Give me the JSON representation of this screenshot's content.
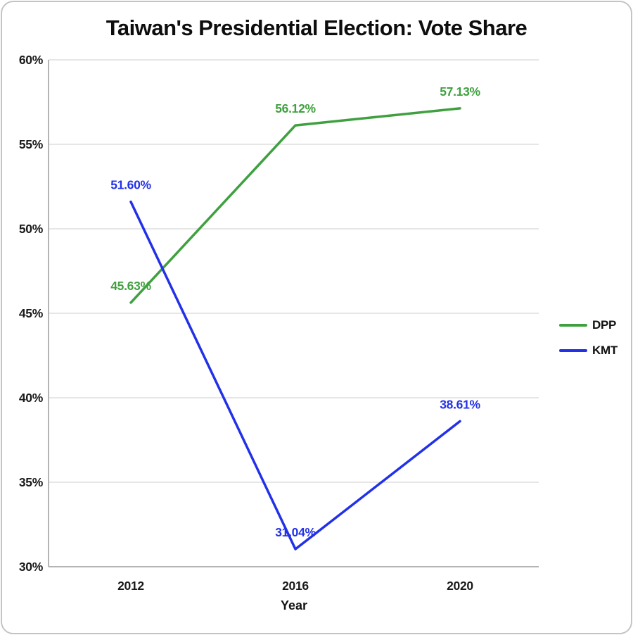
{
  "figure": {
    "background": "#ffffff",
    "border_color": "#c4c4c4"
  },
  "chart_data": {
    "type": "line",
    "title": "Taiwan's Presidential Election: Vote Share",
    "xlabel": "Year",
    "ylabel": "",
    "categories": [
      "2012",
      "2016",
      "2020"
    ],
    "series": [
      {
        "name": "DPP",
        "color": "#3fa03f",
        "values": [
          45.63,
          56.12,
          57.13
        ],
        "point_labels": [
          "45.63%",
          "56.12%",
          "57.13%"
        ]
      },
      {
        "name": "KMT",
        "color": "#2231e8",
        "values": [
          51.6,
          31.04,
          38.61
        ],
        "point_labels": [
          "51.60%",
          "31.04%",
          "38.61%"
        ]
      }
    ],
    "ylim": [
      30,
      60
    ],
    "yticks": [
      30,
      35,
      40,
      45,
      50,
      55,
      60
    ],
    "ytick_labels": [
      "30%",
      "35%",
      "40%",
      "45%",
      "50%",
      "55%",
      "60%"
    ],
    "grid": "horizontal",
    "legend": {
      "position": "right-outside",
      "entries": [
        "DPP",
        "KMT"
      ]
    }
  }
}
